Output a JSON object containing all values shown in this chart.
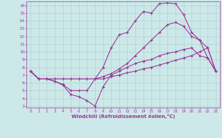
{
  "bg_color": "#cde8e8",
  "line_color": "#993399",
  "grid_color": "#aacccc",
  "xlabel": "Windchill (Refroidissement éolien,°C)",
  "xlim": [
    -0.5,
    23.5
  ],
  "ylim": [
    2.8,
    16.5
  ],
  "xticks": [
    0,
    1,
    2,
    3,
    4,
    5,
    6,
    7,
    8,
    9,
    10,
    11,
    12,
    13,
    14,
    15,
    16,
    17,
    18,
    19,
    20,
    21,
    22,
    23
  ],
  "yticks": [
    3,
    4,
    5,
    6,
    7,
    8,
    9,
    10,
    11,
    12,
    13,
    14,
    15,
    16
  ],
  "line1_x": [
    0,
    1,
    2,
    3,
    4,
    5,
    6,
    7,
    8,
    9,
    10,
    11,
    12,
    13,
    14,
    15,
    16,
    17,
    18,
    19,
    20,
    21,
    22,
    23
  ],
  "line1_y": [
    7.5,
    6.5,
    6.5,
    6.5,
    6.5,
    6.5,
    6.5,
    6.5,
    6.5,
    6.5,
    6.8,
    7.0,
    7.3,
    7.5,
    7.8,
    8.0,
    8.3,
    8.6,
    8.9,
    9.2,
    9.5,
    10.0,
    10.5,
    7.5
  ],
  "line2_x": [
    0,
    1,
    2,
    3,
    4,
    5,
    6,
    7,
    8,
    9,
    10,
    11,
    12,
    13,
    14,
    15,
    16,
    17,
    18,
    19,
    20,
    21,
    22,
    23
  ],
  "line2_y": [
    7.5,
    6.5,
    6.5,
    6.5,
    6.5,
    6.5,
    6.5,
    6.5,
    6.5,
    6.8,
    7.2,
    7.8,
    8.5,
    9.5,
    10.5,
    11.5,
    12.5,
    13.5,
    13.8,
    13.3,
    12.0,
    11.5,
    10.5,
    7.5
  ],
  "line3_x": [
    0,
    1,
    2,
    3,
    4,
    5,
    6,
    7,
    8,
    9,
    10,
    11,
    12,
    13,
    14,
    15,
    16,
    17,
    18,
    19,
    20,
    21,
    22,
    23
  ],
  "line3_y": [
    7.5,
    6.5,
    6.5,
    6.2,
    5.8,
    5.0,
    5.0,
    5.0,
    6.5,
    8.0,
    10.5,
    12.2,
    12.5,
    14.0,
    15.2,
    15.0,
    16.2,
    16.3,
    16.2,
    14.8,
    12.5,
    11.5,
    9.2,
    7.5
  ],
  "line4_x": [
    0,
    1,
    2,
    3,
    4,
    5,
    6,
    7,
    8,
    9,
    10,
    11,
    12,
    13,
    14,
    15,
    16,
    17,
    18,
    19,
    20,
    21,
    22,
    23
  ],
  "line4_y": [
    7.5,
    6.5,
    6.5,
    6.2,
    5.7,
    4.5,
    4.2,
    3.7,
    3.0,
    5.5,
    7.0,
    7.5,
    8.0,
    8.5,
    8.8,
    9.0,
    9.5,
    9.8,
    10.0,
    10.3,
    10.5,
    9.5,
    9.2,
    7.5
  ]
}
